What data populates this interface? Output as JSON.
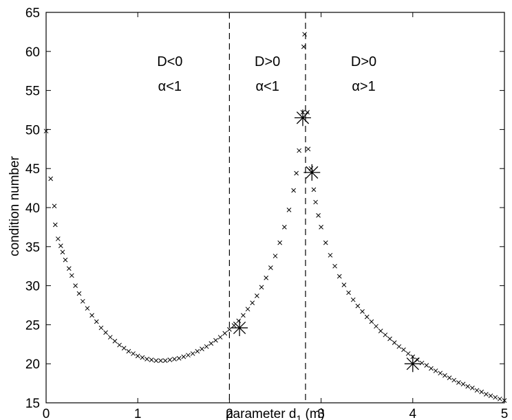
{
  "chart_data": {
    "type": "scatter",
    "title": "",
    "xlabel_main": "parameter d",
    "xlabel_sub": "1",
    "xlabel_unit": " (m)",
    "ylabel": "condition number",
    "xlim": [
      0,
      5
    ],
    "ylim": [
      15,
      65
    ],
    "xticks": [
      "0",
      "1",
      "2",
      "3",
      "4",
      "5"
    ],
    "yticks": [
      "15",
      "20",
      "25",
      "30",
      "35",
      "40",
      "45",
      "50",
      "55",
      "60",
      "65"
    ],
    "grid": false,
    "vlines": [
      2.0,
      2.83
    ],
    "regions": [
      {
        "line1": "D<0",
        "line2": "α<1"
      },
      {
        "line1": "D>0",
        "line2": "α<1"
      },
      {
        "line1": "D>0",
        "line2": "α>1"
      }
    ],
    "marker_style": "x",
    "highlight_style": "asterisk",
    "series": [
      {
        "points": [
          [
            0.0,
            49.8
          ],
          [
            0.05,
            43.7
          ],
          [
            0.09,
            40.2
          ],
          [
            0.1,
            37.8
          ],
          [
            0.13,
            36.0
          ],
          [
            0.16,
            35.1
          ],
          [
            0.18,
            34.3
          ],
          [
            0.21,
            33.3
          ],
          [
            0.25,
            32.2
          ],
          [
            0.28,
            31.3
          ],
          [
            0.32,
            30.0
          ],
          [
            0.36,
            29.0
          ],
          [
            0.4,
            28.0
          ],
          [
            0.45,
            27.1
          ],
          [
            0.5,
            26.2
          ],
          [
            0.55,
            25.4
          ],
          [
            0.6,
            24.6
          ],
          [
            0.65,
            24.0
          ],
          [
            0.7,
            23.4
          ],
          [
            0.75,
            22.9
          ],
          [
            0.8,
            22.4
          ],
          [
            0.85,
            22.0
          ],
          [
            0.9,
            21.6
          ],
          [
            0.95,
            21.3
          ],
          [
            1.0,
            21.0
          ],
          [
            1.05,
            20.8
          ],
          [
            1.1,
            20.6
          ],
          [
            1.15,
            20.5
          ],
          [
            1.2,
            20.4
          ],
          [
            1.25,
            20.4
          ],
          [
            1.3,
            20.4
          ],
          [
            1.35,
            20.5
          ],
          [
            1.4,
            20.6
          ],
          [
            1.45,
            20.7
          ],
          [
            1.5,
            20.9
          ],
          [
            1.55,
            21.1
          ],
          [
            1.6,
            21.3
          ],
          [
            1.65,
            21.6
          ],
          [
            1.7,
            21.9
          ],
          [
            1.75,
            22.2
          ],
          [
            1.8,
            22.6
          ],
          [
            1.85,
            23.0
          ],
          [
            1.9,
            23.4
          ],
          [
            1.95,
            23.9
          ],
          [
            2.0,
            24.4
          ],
          [
            2.05,
            24.9
          ],
          [
            2.1,
            25.5
          ],
          [
            2.15,
            26.2
          ],
          [
            2.2,
            27.0
          ],
          [
            2.25,
            27.8
          ],
          [
            2.3,
            28.7
          ],
          [
            2.35,
            29.8
          ],
          [
            2.4,
            31.0
          ],
          [
            2.45,
            32.3
          ],
          [
            2.5,
            33.8
          ],
          [
            2.55,
            35.5
          ],
          [
            2.6,
            37.5
          ],
          [
            2.65,
            39.7
          ],
          [
            2.7,
            42.2
          ],
          [
            2.73,
            44.4
          ],
          [
            2.76,
            47.3
          ],
          [
            2.8,
            52.2
          ],
          [
            2.81,
            60.6
          ],
          [
            2.82,
            62.2
          ],
          [
            2.85,
            52.2
          ],
          [
            2.86,
            47.5
          ],
          [
            2.89,
            45.0
          ],
          [
            2.92,
            42.3
          ],
          [
            2.94,
            40.7
          ],
          [
            2.97,
            39.0
          ],
          [
            3.0,
            37.5
          ],
          [
            3.05,
            35.5
          ],
          [
            3.1,
            33.9
          ],
          [
            3.15,
            32.5
          ],
          [
            3.2,
            31.2
          ],
          [
            3.25,
            30.1
          ],
          [
            3.3,
            29.1
          ],
          [
            3.35,
            28.2
          ],
          [
            3.4,
            27.4
          ],
          [
            3.45,
            26.7
          ],
          [
            3.5,
            26.0
          ],
          [
            3.55,
            25.4
          ],
          [
            3.6,
            24.8
          ],
          [
            3.65,
            24.2
          ],
          [
            3.7,
            23.7
          ],
          [
            3.75,
            23.2
          ],
          [
            3.8,
            22.7
          ],
          [
            3.85,
            22.2
          ],
          [
            3.9,
            21.8
          ],
          [
            3.95,
            21.3
          ],
          [
            4.0,
            20.9
          ],
          [
            4.05,
            20.5
          ],
          [
            4.1,
            20.1
          ],
          [
            4.15,
            19.8
          ],
          [
            4.2,
            19.4
          ],
          [
            4.25,
            19.1
          ],
          [
            4.3,
            18.8
          ],
          [
            4.35,
            18.5
          ],
          [
            4.4,
            18.2
          ],
          [
            4.45,
            17.9
          ],
          [
            4.5,
            17.6
          ],
          [
            4.55,
            17.4
          ],
          [
            4.6,
            17.1
          ],
          [
            4.65,
            16.9
          ],
          [
            4.7,
            16.6
          ],
          [
            4.75,
            16.4
          ],
          [
            4.8,
            16.1
          ],
          [
            4.85,
            15.9
          ],
          [
            4.9,
            15.7
          ],
          [
            4.95,
            15.5
          ],
          [
            5.0,
            15.3
          ]
        ]
      },
      {
        "points": [
          [
            2.11,
            24.6
          ],
          [
            2.8,
            51.5
          ],
          [
            2.9,
            44.5
          ],
          [
            4.0,
            20.0
          ]
        ]
      }
    ]
  }
}
